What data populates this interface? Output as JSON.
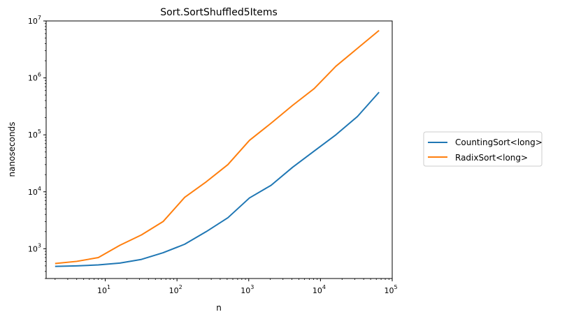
{
  "chart_data": {
    "type": "line",
    "title": "Sort.SortShuffled5Items",
    "xlabel": "n",
    "ylabel": "nanoseconds",
    "xscale": "log",
    "yscale": "log",
    "xlim": [
      1.5,
      100000
    ],
    "ylim": [
      300,
      10000000
    ],
    "x_ticks": [
      {
        "base": "10",
        "exp": "1",
        "value": 10
      },
      {
        "base": "10",
        "exp": "2",
        "value": 100
      },
      {
        "base": "10",
        "exp": "3",
        "value": 1000
      },
      {
        "base": "10",
        "exp": "4",
        "value": 10000
      },
      {
        "base": "10",
        "exp": "5",
        "value": 100000
      }
    ],
    "y_ticks": [
      {
        "base": "10",
        "exp": "3",
        "value": 1000
      },
      {
        "base": "10",
        "exp": "4",
        "value": 10000
      },
      {
        "base": "10",
        "exp": "5",
        "value": 100000
      },
      {
        "base": "10",
        "exp": "6",
        "value": 1000000
      },
      {
        "base": "10",
        "exp": "7",
        "value": 10000000
      }
    ],
    "x": [
      2,
      4,
      8,
      16,
      32,
      64,
      128,
      256,
      512,
      1024,
      2048,
      4096,
      8192,
      16384,
      32768,
      65536
    ],
    "series": [
      {
        "name": "CountingSort<long>",
        "color": "#1f77b4",
        "values": [
          490,
          500,
          520,
          560,
          650,
          850,
          1200,
          2000,
          3500,
          7800,
          13000,
          27000,
          52000,
          100000,
          210000,
          560000
        ]
      },
      {
        "name": "RadixSort<long>",
        "color": "#ff7f0e",
        "values": [
          550,
          600,
          700,
          1150,
          1750,
          3000,
          8000,
          15000,
          30000,
          80000,
          160000,
          330000,
          650000,
          1600000,
          3300000,
          6800000
        ]
      }
    ],
    "legend_position": "outside-right",
    "grid": false
  }
}
